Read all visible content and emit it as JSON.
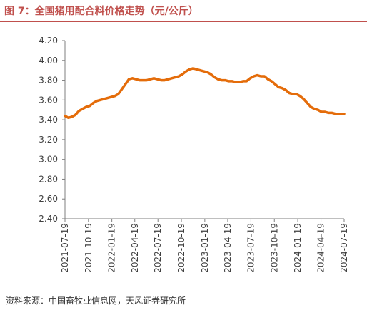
{
  "title": "图 7：全国猪用配合料价格走势（元/公斤）",
  "source": "资料来源：中国畜牧业信息网，天风证券研究所",
  "colors": {
    "title": "#c0504d",
    "line": "#e46c0a",
    "axis": "#7f7f7f",
    "text": "#404040"
  },
  "chart_data": {
    "type": "line",
    "title": "全国猪用配合料价格走势（元/公斤）",
    "xlabel": "",
    "ylabel": "",
    "x_ticks": [
      "2021-07-19",
      "2021-10-19",
      "2022-01-19",
      "2022-04-19",
      "2022-07-19",
      "2022-10-19",
      "2023-01-19",
      "2023-04-19",
      "2023-07-19",
      "2023-10-19",
      "2024-01-19",
      "2024-04-19",
      "2024-07-19"
    ],
    "y_ticks": [
      "2.40",
      "2.60",
      "2.80",
      "3.00",
      "3.20",
      "3.40",
      "3.60",
      "3.80",
      "4.00",
      "4.20"
    ],
    "ylim": [
      2.4,
      4.2
    ],
    "grid": false,
    "legend": "none",
    "series": [
      {
        "values": [
          {
            "x": "2021-07-19",
            "y": 3.44
          },
          {
            "x": "2021-08-01",
            "y": 3.42
          },
          {
            "x": "2021-08-15",
            "y": 3.43
          },
          {
            "x": "2021-08-29",
            "y": 3.45
          },
          {
            "x": "2021-09-12",
            "y": 3.49
          },
          {
            "x": "2021-09-26",
            "y": 3.51
          },
          {
            "x": "2021-10-10",
            "y": 3.53
          },
          {
            "x": "2021-10-24",
            "y": 3.54
          },
          {
            "x": "2021-11-07",
            "y": 3.57
          },
          {
            "x": "2021-11-21",
            "y": 3.59
          },
          {
            "x": "2021-12-05",
            "y": 3.6
          },
          {
            "x": "2021-12-19",
            "y": 3.61
          },
          {
            "x": "2022-01-02",
            "y": 3.62
          },
          {
            "x": "2022-01-16",
            "y": 3.63
          },
          {
            "x": "2022-01-30",
            "y": 3.64
          },
          {
            "x": "2022-02-13",
            "y": 3.66
          },
          {
            "x": "2022-02-27",
            "y": 3.71
          },
          {
            "x": "2022-03-13",
            "y": 3.76
          },
          {
            "x": "2022-03-27",
            "y": 3.81
          },
          {
            "x": "2022-04-10",
            "y": 3.82
          },
          {
            "x": "2022-04-24",
            "y": 3.81
          },
          {
            "x": "2022-05-08",
            "y": 3.8
          },
          {
            "x": "2022-05-22",
            "y": 3.8
          },
          {
            "x": "2022-06-05",
            "y": 3.8
          },
          {
            "x": "2022-06-19",
            "y": 3.81
          },
          {
            "x": "2022-07-03",
            "y": 3.82
          },
          {
            "x": "2022-07-17",
            "y": 3.81
          },
          {
            "x": "2022-07-31",
            "y": 3.8
          },
          {
            "x": "2022-08-14",
            "y": 3.8
          },
          {
            "x": "2022-08-28",
            "y": 3.81
          },
          {
            "x": "2022-09-11",
            "y": 3.82
          },
          {
            "x": "2022-09-25",
            "y": 3.83
          },
          {
            "x": "2022-10-09",
            "y": 3.84
          },
          {
            "x": "2022-10-23",
            "y": 3.86
          },
          {
            "x": "2022-11-06",
            "y": 3.89
          },
          {
            "x": "2022-11-20",
            "y": 3.91
          },
          {
            "x": "2022-12-04",
            "y": 3.92
          },
          {
            "x": "2022-12-18",
            "y": 3.91
          },
          {
            "x": "2023-01-01",
            "y": 3.9
          },
          {
            "x": "2023-01-15",
            "y": 3.89
          },
          {
            "x": "2023-01-29",
            "y": 3.88
          },
          {
            "x": "2023-02-12",
            "y": 3.86
          },
          {
            "x": "2023-02-26",
            "y": 3.83
          },
          {
            "x": "2023-03-12",
            "y": 3.81
          },
          {
            "x": "2023-03-26",
            "y": 3.8
          },
          {
            "x": "2023-04-09",
            "y": 3.8
          },
          {
            "x": "2023-04-23",
            "y": 3.79
          },
          {
            "x": "2023-05-07",
            "y": 3.79
          },
          {
            "x": "2023-05-21",
            "y": 3.78
          },
          {
            "x": "2023-06-04",
            "y": 3.78
          },
          {
            "x": "2023-06-18",
            "y": 3.79
          },
          {
            "x": "2023-07-02",
            "y": 3.79
          },
          {
            "x": "2023-07-16",
            "y": 3.82
          },
          {
            "x": "2023-07-30",
            "y": 3.84
          },
          {
            "x": "2023-08-13",
            "y": 3.85
          },
          {
            "x": "2023-08-27",
            "y": 3.84
          },
          {
            "x": "2023-09-10",
            "y": 3.84
          },
          {
            "x": "2023-09-24",
            "y": 3.81
          },
          {
            "x": "2023-10-08",
            "y": 3.79
          },
          {
            "x": "2023-10-22",
            "y": 3.76
          },
          {
            "x": "2023-11-05",
            "y": 3.73
          },
          {
            "x": "2023-11-19",
            "y": 3.72
          },
          {
            "x": "2023-12-03",
            "y": 3.7
          },
          {
            "x": "2023-12-17",
            "y": 3.67
          },
          {
            "x": "2023-12-31",
            "y": 3.66
          },
          {
            "x": "2024-01-14",
            "y": 3.66
          },
          {
            "x": "2024-01-28",
            "y": 3.64
          },
          {
            "x": "2024-02-11",
            "y": 3.61
          },
          {
            "x": "2024-02-25",
            "y": 3.57
          },
          {
            "x": "2024-03-10",
            "y": 3.53
          },
          {
            "x": "2024-03-24",
            "y": 3.51
          },
          {
            "x": "2024-04-07",
            "y": 3.5
          },
          {
            "x": "2024-04-21",
            "y": 3.48
          },
          {
            "x": "2024-05-05",
            "y": 3.48
          },
          {
            "x": "2024-05-19",
            "y": 3.47
          },
          {
            "x": "2024-06-02",
            "y": 3.47
          },
          {
            "x": "2024-06-16",
            "y": 3.46
          },
          {
            "x": "2024-06-30",
            "y": 3.46
          },
          {
            "x": "2024-07-19",
            "y": 3.46
          }
        ]
      }
    ]
  }
}
